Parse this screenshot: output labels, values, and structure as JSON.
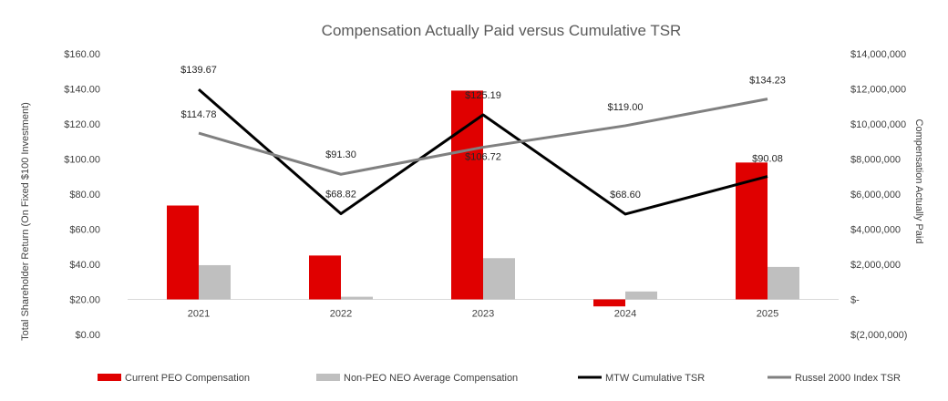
{
  "chart_data": {
    "type": "bar+line",
    "title": "Compensation Actually Paid versus Cumulative TSR",
    "categories": [
      "2021",
      "2022",
      "2023",
      "2024",
      "2025"
    ],
    "left_axis": {
      "label": "Total Shareholder Return  (On Fixed $100 Investment)",
      "range": [
        0,
        160
      ],
      "ticks": [
        "$0.00",
        "$20.00",
        "$40.00",
        "$60.00",
        "$80.00",
        "$100.00",
        "$120.00",
        "$140.00",
        "$160.00"
      ]
    },
    "right_axis": {
      "label": "Compensation Actually Paid",
      "range": [
        -2000000,
        14000000
      ],
      "ticks": [
        "$(2,000,000)",
        "$-",
        "$2,000,000",
        "$4,000,000",
        "$6,000,000",
        "$8,000,000",
        "$10,000,000",
        "$12,000,000",
        "$14,000,000"
      ]
    },
    "bar_series": [
      {
        "name": "Current PEO Compensation",
        "color": "#e00000",
        "values": [
          5350000,
          2500000,
          11900000,
          -400000,
          7800000
        ]
      },
      {
        "name": "Non-PEO NEO Average Compensation",
        "color": "#bfbfbf",
        "values": [
          1950000,
          150000,
          2350000,
          450000,
          1850000
        ]
      }
    ],
    "line_series": [
      {
        "name": "MTW Cumulative TSR",
        "color": "#000000",
        "values": [
          139.67,
          68.82,
          125.19,
          68.6,
          90.08
        ],
        "labels": [
          "$139.67",
          "$68.82",
          "$125.19",
          "$68.60",
          "$90.08"
        ]
      },
      {
        "name": "Russel 2000 Index TSR",
        "color": "#808080",
        "values": [
          114.78,
          91.3,
          106.72,
          119.0,
          134.23
        ],
        "labels": [
          "$114.78",
          "$91.30",
          "$106.72",
          "$119.00",
          "$134.23"
        ]
      }
    ],
    "legend": "bottom",
    "grid": false
  }
}
